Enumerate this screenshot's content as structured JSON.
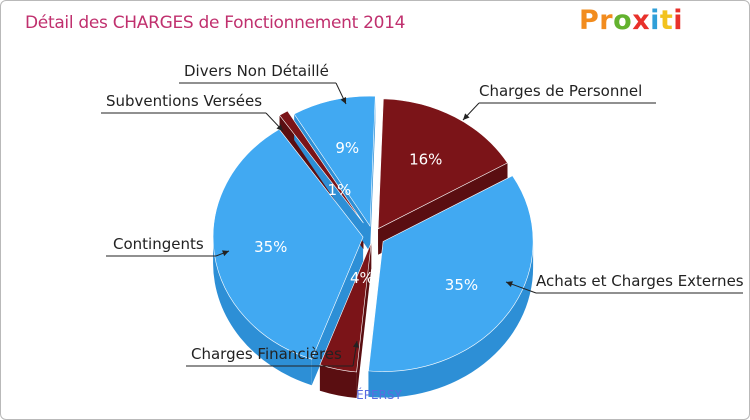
{
  "page": {
    "title": "Détail des CHARGES de Fonctionnement 2014",
    "logo_letters": [
      "P",
      "r",
      "o",
      "x",
      "i",
      "t",
      "i"
    ],
    "logo_colors": [
      "#f28c1e",
      "#f28c1e",
      "#63b22f",
      "#e8312b",
      "#2f9fd8",
      "#f2c21e",
      "#e8312b"
    ],
    "city": "ÉPERSY"
  },
  "colors": {
    "title": "#c0306e",
    "city": "#5a6be0",
    "blue_top": "#41a9f2",
    "blue_side": "#2d8fd6",
    "red_top": "#7b1418",
    "red_side": "#5a0e11",
    "leader": "#222222"
  },
  "chart_data": {
    "type": "pie",
    "title": "Détail des CHARGES de Fonctionnement 2014",
    "subtitle": "ÉPERSY",
    "style": "3d-exploded",
    "slices": [
      {
        "label": "Charges de Personnel",
        "value": 16,
        "display": "16%",
        "color": "red"
      },
      {
        "label": "Achats et Charges Externes",
        "value": 35,
        "display": "35%",
        "color": "blue"
      },
      {
        "label": "Charges Financières",
        "value": 4,
        "display": "4%",
        "color": "red"
      },
      {
        "label": "Contingents",
        "value": 35,
        "display": "35%",
        "color": "blue"
      },
      {
        "label": "Subventions Versées",
        "value": 1,
        "display": "1%",
        "color": "red"
      },
      {
        "label": "Divers Non Détaillé",
        "value": 9,
        "display": "9%",
        "color": "blue"
      }
    ]
  }
}
